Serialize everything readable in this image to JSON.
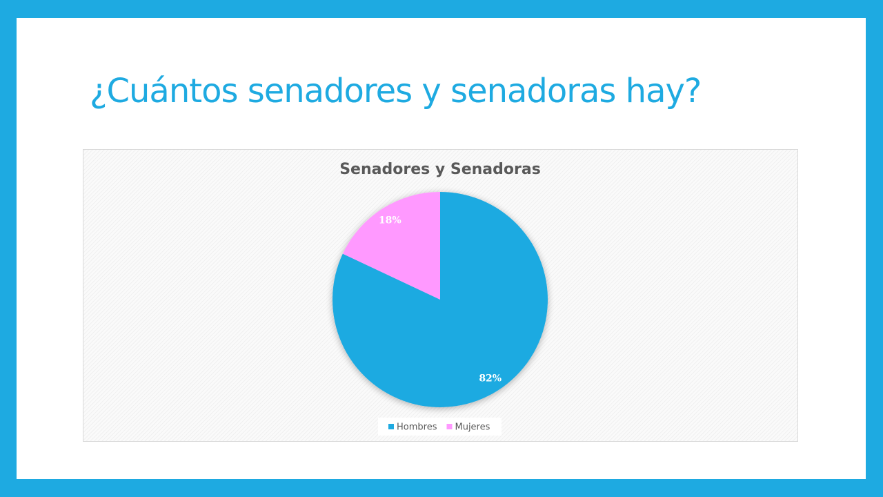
{
  "slide_title": "¿Cuántos senadores y senadoras hay?",
  "chart_data": {
    "type": "pie",
    "title": "Senadores y Senadoras",
    "categories": [
      "Hombres",
      "Mujeres"
    ],
    "values": [
      82,
      18
    ],
    "value_labels": [
      "82%",
      "18%"
    ],
    "colors": [
      "#1eaae1",
      "#ff99ff"
    ],
    "legend": "bottom"
  }
}
